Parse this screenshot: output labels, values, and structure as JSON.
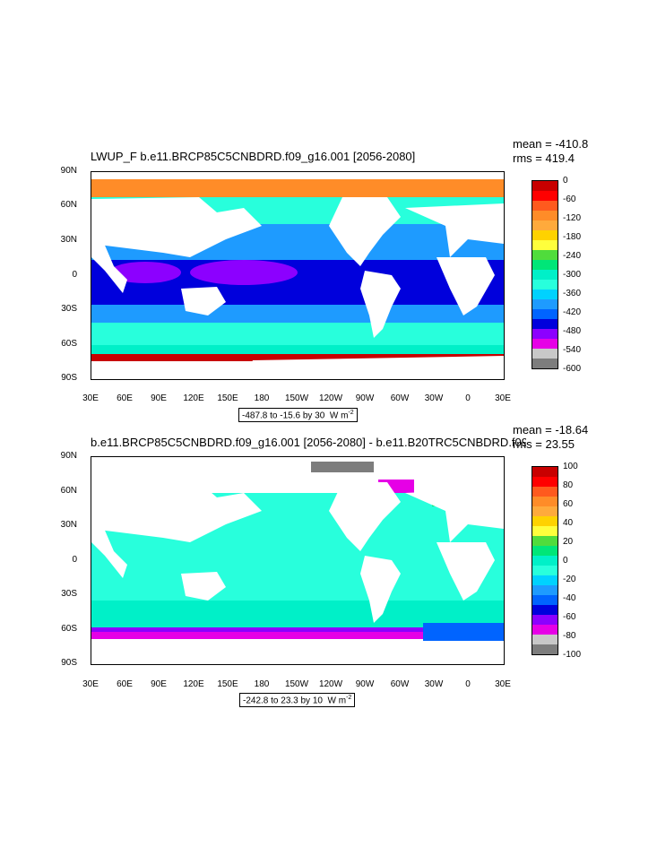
{
  "panels": [
    {
      "title": "LWUP_F b.e11.BRCP85C5CNBDRD.f09_g16.001 [2056-2080]",
      "mean": "mean = -410.8",
      "rms": "rms = 419.4",
      "note": "-487.8 to -15.6 by 30",
      "units": "W m",
      "units_sup": "-2",
      "colorbar_labels": [
        "0",
        "-60",
        "-120",
        "-180",
        "-240",
        "-300",
        "-360",
        "-420",
        "-480",
        "-540",
        "-600"
      ],
      "colors": [
        "#c80000",
        "#ff0000",
        "#ff5a1e",
        "#ff8c28",
        "#ffaa3c",
        "#ffd200",
        "#ffff3c",
        "#50dc3c",
        "#00e678",
        "#00f0c8",
        "#28ffdc",
        "#00d2ff",
        "#1e9bff",
        "#0064ff",
        "#0000dc",
        "#8c00ff",
        "#e600e6",
        "#c8c8c8",
        "#7d7d7d"
      ]
    },
    {
      "title": "b.e11.BRCP85C5CNBDRD.f09_g16.001 [2056-2080] - b.e11.B20TRC5CNBDRD.f09_g16.001 [1981-2005]",
      "mean": "mean = -18.64",
      "rms": "rms = 23.55",
      "note": "-242.8 to 23.3 by 10",
      "units": "W m",
      "units_sup": "-2",
      "colorbar_labels": [
        "100",
        "80",
        "60",
        "40",
        "20",
        "0",
        "-20",
        "-40",
        "-60",
        "-80",
        "-100"
      ],
      "colors": [
        "#c80000",
        "#ff0000",
        "#ff5a1e",
        "#ff8c28",
        "#ffaa3c",
        "#ffd200",
        "#ffff3c",
        "#50dc3c",
        "#00e678",
        "#00f0c8",
        "#28ffdc",
        "#00d2ff",
        "#1e9bff",
        "#0064ff",
        "#0000dc",
        "#8c00ff",
        "#e600e6",
        "#c8c8c8",
        "#7d7d7d"
      ]
    }
  ],
  "axes": {
    "ylabels": [
      "90N",
      "60N",
      "30N",
      "0",
      "30S",
      "60S",
      "90S"
    ],
    "xlabels": [
      "30E",
      "60E",
      "90E",
      "120E",
      "150E",
      "180",
      "150W",
      "120W",
      "90W",
      "60W",
      "30W",
      "0",
      "30E"
    ]
  },
  "chart_data": [
    {
      "type": "heatmap",
      "title": "LWUP_F b.e11.BRCP85C5CNBDRD.f09_g16.001 [2056-2080]",
      "xlabel": "",
      "ylabel": "",
      "x_range": [
        "30E",
        "30E"
      ],
      "y_range": [
        "90S",
        "90N"
      ],
      "contour_range": [
        -487.8,
        -15.6
      ],
      "contour_interval": 30,
      "units": "W m-2",
      "mean": -410.8,
      "rms": 419.4,
      "colorbar": [
        0,
        -60,
        -120,
        -180,
        -240,
        -300,
        -360,
        -420,
        -480,
        -540,
        -600
      ]
    },
    {
      "type": "heatmap",
      "title": "b.e11.BRCP85C5CNBDRD.f09_g16.001 [2056-2080] - b.e11.B20TRC5CNBDRD.f09_g16.001 [1981-2005]",
      "xlabel": "",
      "ylabel": "",
      "x_range": [
        "30E",
        "30E"
      ],
      "y_range": [
        "90S",
        "90N"
      ],
      "contour_range": [
        -242.8,
        23.3
      ],
      "contour_interval": 10,
      "units": "W m-2",
      "mean": -18.64,
      "rms": 23.55,
      "colorbar": [
        100,
        80,
        60,
        40,
        20,
        0,
        -20,
        -40,
        -60,
        -80,
        -100
      ]
    }
  ]
}
